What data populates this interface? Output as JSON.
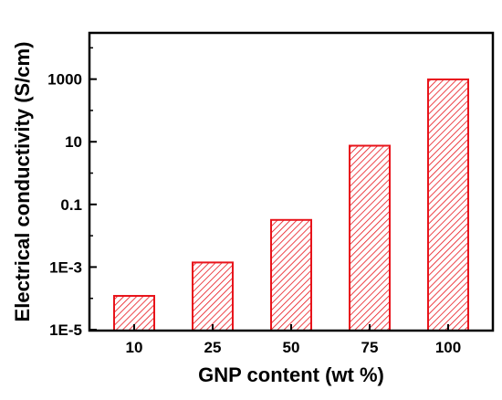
{
  "chart_data": {
    "type": "bar",
    "xlabel": "GNP content (wt %)",
    "ylabel": "Electrical conductivity (S/cm)",
    "categories": [
      "10",
      "25",
      "50",
      "75",
      "100"
    ],
    "values": [
      0.00012,
      0.0014,
      0.032,
      7.5,
      980
    ],
    "y_scale": "log",
    "ylim": [
      1e-05,
      30000
    ],
    "y_ticks": [
      {
        "value": 1e-05,
        "label": "1E-5"
      },
      {
        "value": 0.001,
        "label": "1E-3"
      },
      {
        "value": 0.1,
        "label": "0.1"
      },
      {
        "value": 10,
        "label": "10"
      },
      {
        "value": 1000,
        "label": "1000"
      }
    ],
    "bar_fill": "hatched",
    "colors": {
      "bar_edge": "#e8141b",
      "hatch": "#e8141b",
      "axis": "#000000"
    },
    "grid": false,
    "legend": false
  }
}
